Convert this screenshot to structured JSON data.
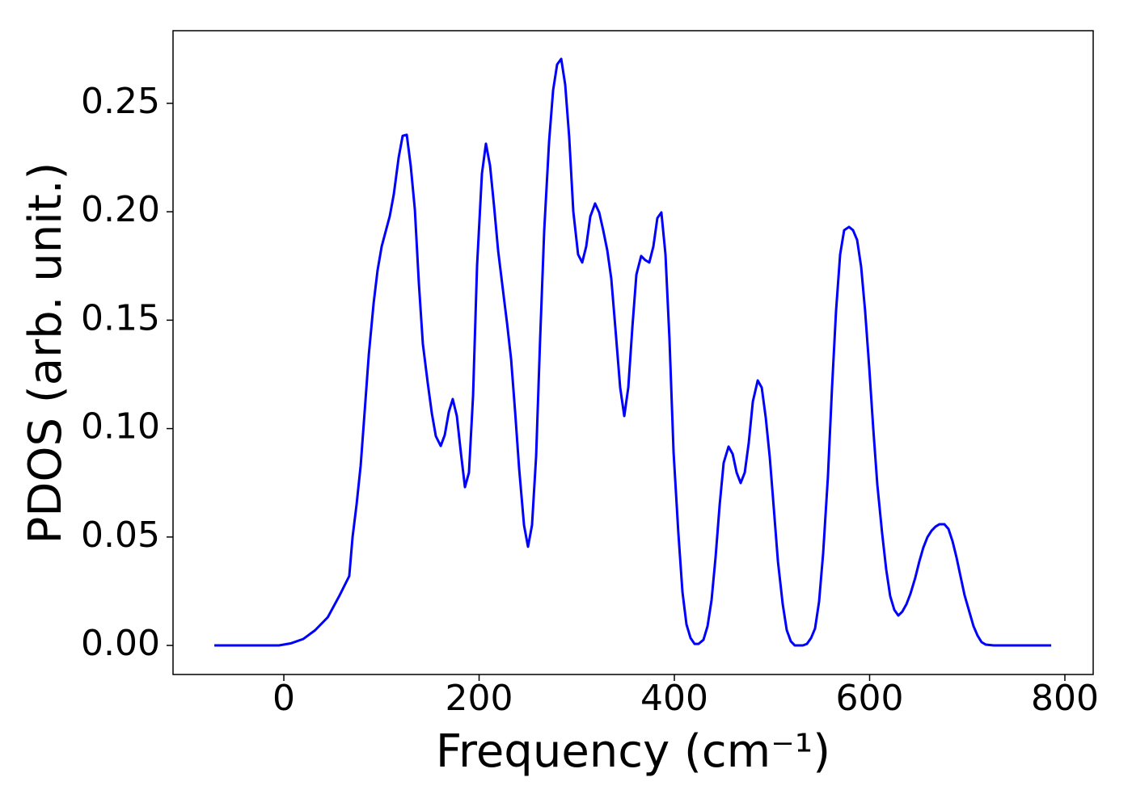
{
  "chart_data": {
    "type": "line",
    "xlabel": "Frequency (cm⁻¹)",
    "ylabel": "PDOS (arb. unit.)",
    "x": [
      -71.2,
      -5,
      7.5,
      20,
      32,
      45,
      57,
      67,
      70.4,
      74.5,
      78.7,
      82.8,
      87,
      92,
      96,
      100.2,
      108.5,
      112.6,
      117.6,
      121.7,
      125.9,
      130,
      134.2,
      138.3,
      142.4,
      147.4,
      151.6,
      155.7,
      160.7,
      164.8,
      169,
      173,
      177.2,
      181.3,
      185.5,
      189.6,
      193.8,
      197.9,
      202.9,
      207,
      211.2,
      215.3,
      219.5,
      224.5,
      228.6,
      232.8,
      236.9,
      241,
      246,
      250.1,
      254.2,
      258.4,
      262.5,
      266.7,
      271.7,
      275.8,
      279.9,
      284.1,
      288.2,
      292.3,
      296.5,
      301.4,
      305.6,
      309.7,
      313.9,
      318.8,
      323,
      327.1,
      331.3,
      335.4,
      339.5,
      344.5,
      348.7,
      352.8,
      357,
      361.1,
      366,
      370.2,
      374.3,
      378.5,
      382.6,
      386.7,
      390.9,
      395,
      399.2,
      404.1,
      408.3,
      412.4,
      416.6,
      420.7,
      424.8,
      429.8,
      434,
      438.1,
      442.2,
      446.4,
      450.5,
      455.5,
      459.7,
      463.8,
      467.9,
      472.1,
      476.2,
      480.4,
      485.4,
      489.5,
      493.6,
      497.8,
      501.9,
      506.1,
      511,
      515.1,
      519.3,
      523.4,
      531.7,
      535.8,
      540,
      544.1,
      548.2,
      552.4,
      557.3,
      561.5,
      565.6,
      569.8,
      573.9,
      578.9,
      583,
      587.2,
      591.3,
      595.4,
      599.6,
      603.7,
      607.9,
      612.8,
      617,
      621.1,
      625.3,
      629.4,
      633.5,
      637.7,
      641.8,
      646.8,
      650.9,
      655,
      659.2,
      663.4,
      667.5,
      671.6,
      676.6,
      680.8,
      684.9,
      689,
      693.2,
      697.3,
      702.3,
      706.4,
      710.6,
      714.7,
      718.9,
      727.1,
      786
    ],
    "series": [
      {
        "color": "#0000ff",
        "values": [
          0,
          0,
          0.001,
          0.003,
          0.007,
          0.013,
          0.023,
          0.032,
          0.05,
          0.065,
          0.083,
          0.108,
          0.134,
          0.158,
          0.173,
          0.184,
          0.198,
          0.208,
          0.225,
          0.235,
          0.2355,
          0.221,
          0.201,
          0.167,
          0.139,
          0.121,
          0.107,
          0.0965,
          0.092,
          0.097,
          0.1077,
          0.1136,
          0.1058,
          0.089,
          0.073,
          0.0797,
          0.115,
          0.175,
          0.2176,
          0.2314,
          0.2213,
          0.2027,
          0.182,
          0.1636,
          0.1487,
          0.1319,
          0.1077,
          0.0816,
          0.0555,
          0.0455,
          0.0555,
          0.0872,
          0.1412,
          0.1915,
          0.2325,
          0.256,
          0.2679,
          0.2705,
          0.2586,
          0.2343,
          0.2001,
          0.1803,
          0.1766,
          0.184,
          0.1978,
          0.2038,
          0.1997,
          0.1915,
          0.1822,
          0.1691,
          0.1468,
          0.1189,
          0.1058,
          0.1189,
          0.1468,
          0.171,
          0.1796,
          0.1777,
          0.1766,
          0.184,
          0.1971,
          0.1997,
          0.1803,
          0.1412,
          0.089,
          0.0518,
          0.0246,
          0.0097,
          0.0034,
          0.0007,
          0.0007,
          0.0026,
          0.0089,
          0.0209,
          0.0406,
          0.0648,
          0.0842,
          0.0917,
          0.0883,
          0.0797,
          0.0749,
          0.0797,
          0.0935,
          0.1125,
          0.1222,
          0.1189,
          0.1051,
          0.0864,
          0.063,
          0.0387,
          0.019,
          0.0071,
          0.0019,
          0,
          0,
          0.0007,
          0.0034,
          0.0078,
          0.0201,
          0.0425,
          0.0779,
          0.1189,
          0.1542,
          0.1803,
          0.1915,
          0.193,
          0.1915,
          0.187,
          0.1747,
          0.1542,
          0.1282,
          0.1002,
          0.0741,
          0.0518,
          0.035,
          0.0227,
          0.0164,
          0.0138,
          0.0156,
          0.019,
          0.0238,
          0.0313,
          0.0387,
          0.0451,
          0.0499,
          0.0529,
          0.0548,
          0.0559,
          0.0559,
          0.0537,
          0.0481,
          0.0406,
          0.0317,
          0.0231,
          0.0153,
          0.0089,
          0.0045,
          0.0015,
          0.0004,
          0,
          0
        ]
      }
    ],
    "xlim": [
      -113.5,
      829
    ],
    "ylim": [
      -0.0134,
      0.2835
    ],
    "xticks": [
      0,
      200,
      400,
      600,
      800
    ],
    "yticks": [
      {
        "value": 0,
        "label": "0.00"
      },
      0.05,
      {
        "value": 0.1,
        "label": "0.10"
      },
      0.15,
      {
        "value": 0.2,
        "label": "0.20"
      },
      0.25
    ]
  }
}
